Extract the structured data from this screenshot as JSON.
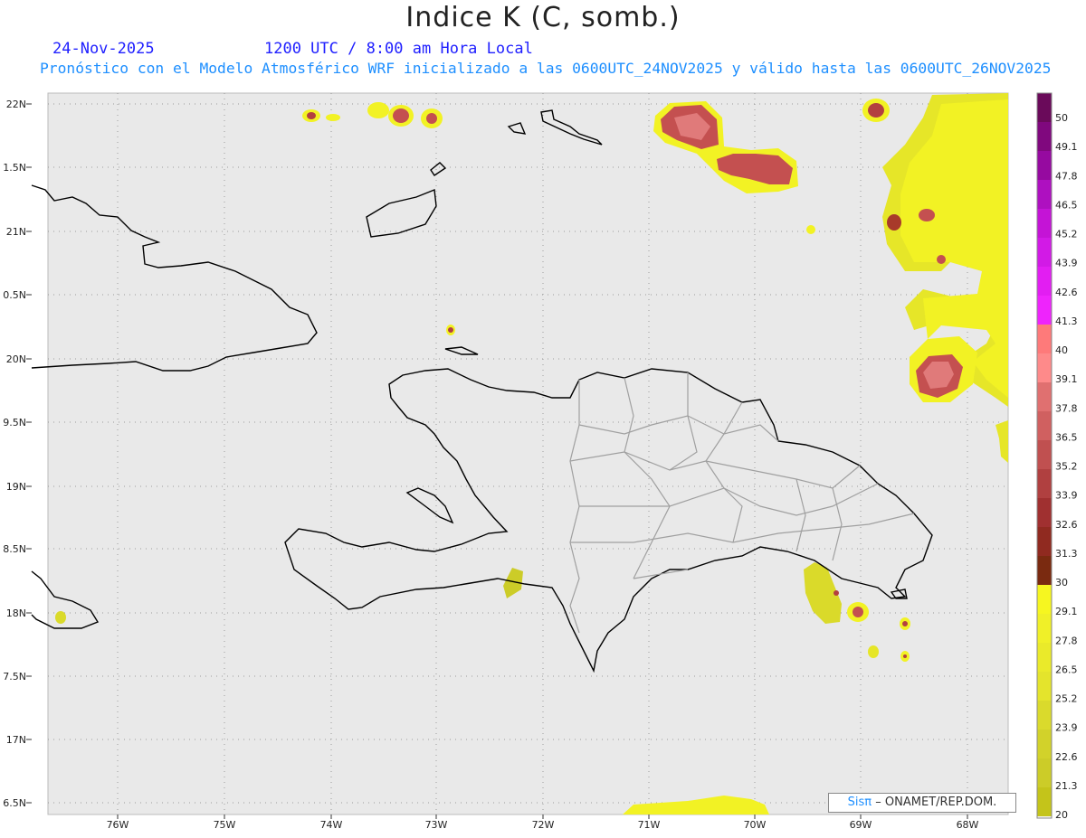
{
  "header": {
    "title": "Indice K (C, somb.)",
    "date": "24-Nov-2025",
    "time": "1200 UTC / 8:00 am Hora Local",
    "forecast": "Pronóstico con el Modelo Atmosférico WRF inicializado a las 0600UTC_24NOV2025 y válido hasta las  0600UTC_26NOV2025"
  },
  "map": {
    "lat_labels": [
      "22N",
      "1.5N",
      "21N",
      "0.5N",
      "20N",
      "9.5N",
      "19N",
      "8.5N",
      "18N",
      "7.5N",
      "17N",
      "6.5N"
    ],
    "lon_labels": [
      "76W",
      "75W",
      "74W",
      "73W",
      "72W",
      "71W",
      "70W",
      "69W",
      "68W"
    ],
    "background_color": "#e9e9e9",
    "coast_color": "#000000",
    "province_color": "#a0a0a0",
    "colorbar": {
      "labels": [
        "50",
        "49.1",
        "47.8",
        "46.5",
        "45.2",
        "43.9",
        "42.6",
        "41.3",
        "40",
        "39.1",
        "37.8",
        "36.5",
        "35.2",
        "33.9",
        "32.6",
        "31.3",
        "30",
        "29.1",
        "27.8",
        "26.5",
        "25.2",
        "23.9",
        "22.6",
        "21.3",
        "20"
      ],
      "colors": [
        "#6a0a5a",
        "#80087e",
        "#960aa0",
        "#ae10c0",
        "#c414d6",
        "#d21ae6",
        "#e21ef2",
        "#ee24fc",
        "#fe7a7a",
        "#fe8a8a",
        "#e07070",
        "#d06060",
        "#c05050",
        "#b04040",
        "#a03030",
        "#902a20",
        "#7a2a10",
        "#f6f620",
        "#f0f028",
        "#eaea2a",
        "#e4e42c",
        "#dada2c",
        "#d2d22a",
        "#cccc28",
        "#c4c41a"
      ]
    }
  },
  "credit": {
    "sis": "Sisπ",
    "text": "– ONAMET/REP.DOM."
  }
}
